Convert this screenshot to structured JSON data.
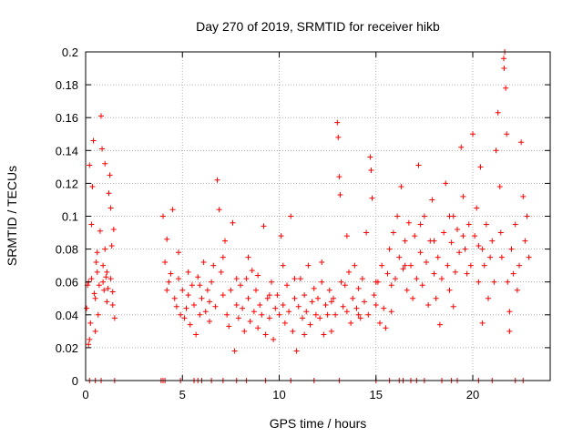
{
  "chart_data": {
    "type": "scatter",
    "title": "Day 270 of 2019, SRMTID for receiver hikb",
    "xlabel": "GPS time / hours",
    "ylabel": "SRMTID / TECUs",
    "xlim": [
      0,
      24
    ],
    "ylim": [
      0,
      0.2
    ],
    "x_ticks": [
      "0",
      "5",
      "10",
      "15",
      "20"
    ],
    "y_ticks": [
      "0",
      "0.02",
      "0.04",
      "0.06",
      "0.08",
      "0.1",
      "0.12",
      "0.14",
      "0.16",
      "0.18",
      "0.2"
    ],
    "grid": true,
    "legend": "none",
    "marker": "+",
    "series": [
      {
        "color": "#ff0000",
        "points": [
          [
            0.05,
            0.044
          ],
          [
            0.1,
            0.058
          ],
          [
            0.15,
            0.06
          ],
          [
            0.2,
            0.025
          ],
          [
            0.25,
            0.035
          ],
          [
            0.3,
            0.062
          ],
          [
            0.35,
            0.118
          ],
          [
            0.4,
            0.146
          ],
          [
            0.45,
            0.053
          ],
          [
            0.5,
            0.05
          ],
          [
            0.55,
            0.072
          ],
          [
            0.6,
            0.066
          ],
          [
            0.65,
            0.04
          ],
          [
            0.7,
            0.058
          ],
          [
            0.75,
            0.091
          ],
          [
            0.8,
            0.161
          ],
          [
            0.85,
            0.141
          ],
          [
            0.9,
            0.06
          ],
          [
            0.95,
            0.055
          ],
          [
            1.0,
            0.08
          ],
          [
            1.05,
            0.063
          ],
          [
            1.1,
            0.048
          ],
          [
            1.15,
            0.056
          ],
          [
            1.2,
            0.114
          ],
          [
            1.25,
            0.125
          ],
          [
            1.3,
            0.062
          ],
          [
            1.35,
            0.082
          ],
          [
            1.4,
            0.046
          ],
          [
            1.45,
            0.092
          ],
          [
            1.5,
            0.038
          ],
          [
            0.2,
            0.131
          ],
          [
            0.3,
            0.095
          ],
          [
            0.5,
            0.03
          ],
          [
            0.6,
            0.078
          ],
          [
            0.9,
            0.07
          ],
          [
            1.0,
            0.132
          ],
          [
            1.1,
            0.066
          ],
          [
            1.3,
            0.105
          ],
          [
            1.4,
            0.054
          ],
          [
            0.15,
            0.022
          ],
          [
            4.0,
            0.1
          ],
          [
            4.1,
            0.072
          ],
          [
            4.2,
            0.086
          ],
          [
            4.3,
            0.06
          ],
          [
            4.4,
            0.065
          ],
          [
            4.5,
            0.104
          ],
          [
            4.6,
            0.05
          ],
          [
            4.7,
            0.045
          ],
          [
            4.8,
            0.062
          ],
          [
            4.9,
            0.04
          ],
          [
            5.0,
            0.055
          ],
          [
            5.1,
            0.038
          ],
          [
            5.2,
            0.044
          ],
          [
            5.3,
            0.052
          ],
          [
            5.4,
            0.034
          ],
          [
            5.5,
            0.058
          ],
          [
            5.6,
            0.046
          ],
          [
            5.7,
            0.028
          ],
          [
            5.8,
            0.063
          ],
          [
            5.9,
            0.04
          ],
          [
            6.0,
            0.05
          ],
          [
            6.1,
            0.072
          ],
          [
            6.2,
            0.042
          ],
          [
            6.3,
            0.055
          ],
          [
            6.4,
            0.048
          ],
          [
            6.5,
            0.06
          ],
          [
            6.6,
            0.07
          ],
          [
            6.7,
            0.045
          ],
          [
            6.8,
            0.122
          ],
          [
            6.9,
            0.104
          ],
          [
            7.0,
            0.066
          ],
          [
            7.1,
            0.052
          ],
          [
            7.2,
            0.085
          ],
          [
            7.3,
            0.04
          ],
          [
            7.4,
            0.033
          ],
          [
            7.5,
            0.055
          ],
          [
            7.6,
            0.096
          ],
          [
            7.7,
            0.018
          ],
          [
            7.8,
            0.046
          ],
          [
            7.9,
            0.038
          ],
          [
            8.0,
            0.058
          ],
          [
            8.1,
            0.044
          ],
          [
            8.2,
            0.03
          ],
          [
            8.3,
            0.062
          ],
          [
            8.4,
            0.05
          ],
          [
            8.5,
            0.036
          ],
          [
            8.6,
            0.067
          ],
          [
            8.7,
            0.042
          ],
          [
            8.8,
            0.055
          ],
          [
            8.9,
            0.032
          ],
          [
            9.0,
            0.046
          ],
          [
            9.1,
            0.04
          ],
          [
            9.2,
            0.094
          ],
          [
            9.3,
            0.028
          ],
          [
            9.4,
            0.05
          ],
          [
            9.5,
            0.038
          ],
          [
            9.6,
            0.06
          ],
          [
            9.7,
            0.025
          ],
          [
            9.8,
            0.044
          ],
          [
            9.9,
            0.052
          ],
          [
            10.0,
            0.04
          ],
          [
            10.1,
            0.088
          ],
          [
            10.2,
            0.046
          ],
          [
            10.3,
            0.035
          ],
          [
            10.4,
            0.058
          ],
          [
            10.5,
            0.042
          ],
          [
            10.6,
            0.1
          ],
          [
            10.7,
            0.03
          ],
          [
            10.8,
            0.05
          ],
          [
            10.9,
            0.018
          ],
          [
            11.0,
            0.045
          ],
          [
            11.1,
            0.062
          ],
          [
            11.2,
            0.038
          ],
          [
            11.3,
            0.052
          ],
          [
            11.4,
            0.042
          ],
          [
            11.5,
            0.07
          ],
          [
            11.6,
            0.034
          ],
          [
            11.7,
            0.048
          ],
          [
            11.8,
            0.056
          ],
          [
            11.9,
            0.04
          ],
          [
            12.0,
            0.05
          ],
          [
            12.1,
            0.038
          ],
          [
            12.2,
            0.06
          ],
          [
            12.3,
            0.028
          ],
          [
            12.4,
            0.046
          ],
          [
            12.5,
            0.04
          ],
          [
            12.6,
            0.055
          ],
          [
            12.7,
            0.03
          ],
          [
            12.8,
            0.05
          ],
          [
            12.9,
            0.04
          ],
          [
            13.0,
            0.157
          ],
          [
            13.05,
            0.148
          ],
          [
            13.1,
            0.124
          ],
          [
            13.15,
            0.113
          ],
          [
            13.2,
            0.06
          ],
          [
            13.3,
            0.045
          ],
          [
            13.4,
            0.058
          ],
          [
            13.5,
            0.042
          ],
          [
            13.6,
            0.066
          ],
          [
            13.7,
            0.035
          ],
          [
            13.8,
            0.05
          ],
          [
            13.9,
            0.07
          ],
          [
            14.0,
            0.044
          ],
          [
            14.1,
            0.056
          ],
          [
            14.2,
            0.038
          ],
          [
            14.3,
            0.062
          ],
          [
            14.4,
            0.048
          ],
          [
            14.5,
            0.09
          ],
          [
            14.6,
            0.04
          ],
          [
            14.7,
            0.136
          ],
          [
            14.75,
            0.128
          ],
          [
            14.8,
            0.111
          ],
          [
            14.9,
            0.052
          ],
          [
            15.0,
            0.046
          ],
          [
            15.1,
            0.06
          ],
          [
            15.2,
            0.035
          ],
          [
            15.3,
            0.07
          ],
          [
            15.4,
            0.044
          ],
          [
            15.5,
            0.032
          ],
          [
            15.6,
            0.065
          ],
          [
            15.7,
            0.08
          ],
          [
            15.8,
            0.058
          ],
          [
            15.9,
            0.09
          ],
          [
            16.0,
            0.062
          ],
          [
            16.1,
            0.1
          ],
          [
            16.2,
            0.075
          ],
          [
            16.3,
            0.118
          ],
          [
            16.4,
            0.068
          ],
          [
            16.5,
            0.085
          ],
          [
            16.6,
            0.055
          ],
          [
            16.7,
            0.096
          ],
          [
            16.8,
            0.07
          ],
          [
            16.9,
            0.05
          ],
          [
            17.0,
            0.088
          ],
          [
            17.1,
            0.062
          ],
          [
            17.2,
            0.131
          ],
          [
            17.3,
            0.078
          ],
          [
            17.4,
            0.058
          ],
          [
            17.5,
            0.1
          ],
          [
            17.6,
            0.072
          ],
          [
            17.7,
            0.046
          ],
          [
            17.8,
            0.085
          ],
          [
            17.9,
            0.11
          ],
          [
            18.0,
            0.065
          ],
          [
            18.1,
            0.05
          ],
          [
            18.2,
            0.075
          ],
          [
            18.3,
            0.034
          ],
          [
            18.4,
            0.062
          ],
          [
            18.5,
            0.09
          ],
          [
            18.6,
            0.12
          ],
          [
            18.7,
            0.07
          ],
          [
            18.8,
            0.055
          ],
          [
            18.9,
            0.084
          ],
          [
            19.0,
            0.1
          ],
          [
            19.1,
            0.066
          ],
          [
            19.2,
            0.092
          ],
          [
            19.3,
            0.078
          ],
          [
            19.4,
            0.142
          ],
          [
            19.5,
            0.112
          ],
          [
            19.6,
            0.08
          ],
          [
            19.7,
            0.065
          ],
          [
            19.8,
            0.095
          ],
          [
            19.9,
            0.07
          ],
          [
            20.0,
            0.15
          ],
          [
            20.1,
            0.088
          ],
          [
            20.2,
            0.105
          ],
          [
            20.3,
            0.06
          ],
          [
            20.4,
            0.13
          ],
          [
            20.5,
            0.08
          ],
          [
            20.6,
            0.07
          ],
          [
            20.7,
            0.095
          ],
          [
            20.8,
            0.05
          ],
          [
            20.9,
            0.075
          ],
          [
            21.0,
            0.085
          ],
          [
            21.1,
            0.06
          ],
          [
            21.2,
            0.14
          ],
          [
            21.3,
            0.163
          ],
          [
            21.4,
            0.118
          ],
          [
            21.45,
            0.09
          ],
          [
            21.5,
            0.075
          ],
          [
            21.6,
            0.196
          ],
          [
            21.62,
            0.19
          ],
          [
            21.65,
            0.2
          ],
          [
            21.7,
            0.178
          ],
          [
            21.75,
            0.15
          ],
          [
            21.8,
            0.06
          ],
          [
            21.9,
            0.042
          ],
          [
            22.0,
            0.08
          ],
          [
            22.1,
            0.065
          ],
          [
            22.2,
            0.095
          ],
          [
            22.3,
            0.055
          ],
          [
            22.4,
            0.07
          ],
          [
            22.5,
            0.145
          ],
          [
            22.6,
            0.112
          ],
          [
            22.7,
            0.085
          ],
          [
            22.8,
            0.1
          ],
          [
            22.9,
            0.075
          ],
          [
            19.0,
            0.045
          ],
          [
            20.5,
            0.035
          ],
          [
            21.9,
            0.03
          ],
          [
            4.2,
            0.055
          ],
          [
            4.8,
            0.078
          ],
          [
            5.3,
            0.066
          ],
          [
            5.9,
            0.058
          ],
          [
            6.4,
            0.036
          ],
          [
            7.1,
            0.075
          ],
          [
            7.8,
            0.062
          ],
          [
            8.4,
            0.075
          ],
          [
            8.9,
            0.064
          ],
          [
            9.5,
            0.052
          ],
          [
            10.2,
            0.07
          ],
          [
            10.8,
            0.062
          ],
          [
            11.3,
            0.028
          ],
          [
            12.2,
            0.072
          ],
          [
            12.7,
            0.048
          ],
          [
            13.5,
            0.088
          ],
          [
            14.1,
            0.04
          ],
          [
            15.0,
            0.06
          ],
          [
            15.8,
            0.042
          ],
          [
            16.5,
            0.07
          ],
          [
            17.3,
            0.095
          ],
          [
            18.0,
            0.085
          ],
          [
            18.8,
            0.1
          ],
          [
            19.5,
            0.088
          ],
          [
            20.3,
            0.082
          ]
        ]
      }
    ],
    "zero_points_x": [
      0.2,
      0.5,
      0.8,
      1.5,
      3.9,
      4.0,
      4.1,
      4.9,
      5.6,
      5.8,
      6.0,
      6.5,
      7.1,
      7.8,
      8.3,
      9.3,
      10.6,
      11.8,
      13.1,
      15.0,
      15.7,
      16.2,
      16.4,
      16.8,
      17.1,
      17.5,
      18.4,
      18.9,
      19.2,
      20.3,
      21.0,
      22.2,
      22.6
    ]
  }
}
